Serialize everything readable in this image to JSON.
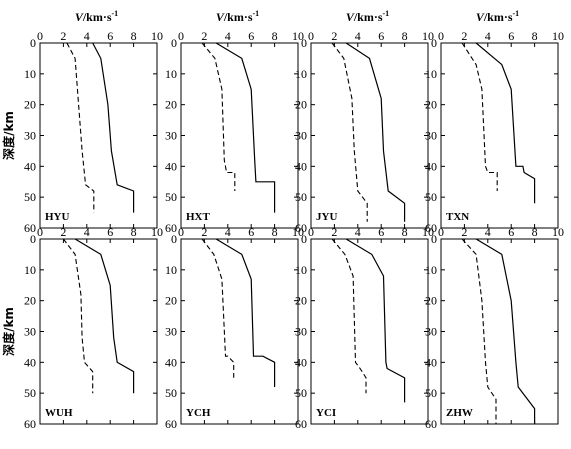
{
  "chart_data": {
    "type": "line",
    "x_axis": {
      "label": "V/km·s⁻¹",
      "label_parts": [
        "V",
        "/km·s",
        "-1"
      ],
      "range": [
        0,
        10
      ],
      "ticks": [
        "0",
        "2",
        "4",
        "6",
        "8",
        "10"
      ],
      "position": "top"
    },
    "y_axis": {
      "label": "深度/km",
      "range": [
        0,
        60
      ],
      "ticks": [
        "0",
        "10",
        "20",
        "30",
        "40",
        "50",
        "60"
      ],
      "inverted": true
    },
    "series_styles": {
      "vp": "solid",
      "vs": "dashed"
    },
    "panels": [
      {
        "station": "HYU",
        "vp": [
          [
            4.5,
            0
          ],
          [
            5.2,
            5
          ],
          [
            5.8,
            20
          ],
          [
            6.1,
            35
          ],
          [
            6.6,
            46
          ],
          [
            8.0,
            48
          ],
          [
            8.0,
            55
          ]
        ],
        "vs": [
          [
            2.3,
            0
          ],
          [
            3.0,
            5
          ],
          [
            3.3,
            20
          ],
          [
            3.6,
            35
          ],
          [
            3.9,
            46
          ],
          [
            4.6,
            48
          ],
          [
            4.6,
            55
          ]
        ]
      },
      {
        "station": "HXT",
        "vp": [
          [
            3.0,
            0
          ],
          [
            5.2,
            5
          ],
          [
            6.0,
            15
          ],
          [
            6.3,
            38
          ],
          [
            6.4,
            45
          ],
          [
            8.0,
            45
          ],
          [
            8.0,
            55
          ]
        ],
        "vs": [
          [
            1.8,
            0
          ],
          [
            2.9,
            5
          ],
          [
            3.5,
            15
          ],
          [
            3.7,
            38
          ],
          [
            3.9,
            42
          ],
          [
            4.6,
            42
          ],
          [
            4.6,
            48
          ]
        ]
      },
      {
        "station": "JYU",
        "vp": [
          [
            3.0,
            0
          ],
          [
            5.0,
            5
          ],
          [
            6.0,
            18
          ],
          [
            6.2,
            35
          ],
          [
            6.6,
            48
          ],
          [
            8.0,
            52
          ],
          [
            8.0,
            58
          ]
        ],
        "vs": [
          [
            1.8,
            0
          ],
          [
            2.8,
            5
          ],
          [
            3.5,
            18
          ],
          [
            3.7,
            35
          ],
          [
            4.0,
            48
          ],
          [
            4.8,
            52
          ],
          [
            4.8,
            58
          ]
        ]
      },
      {
        "station": "TXN",
        "vp": [
          [
            3.0,
            0
          ],
          [
            5.2,
            7
          ],
          [
            6.0,
            15
          ],
          [
            6.4,
            40
          ],
          [
            7.0,
            40
          ],
          [
            7.1,
            42
          ],
          [
            8.0,
            44
          ],
          [
            8.0,
            52
          ]
        ],
        "vs": [
          [
            1.8,
            0
          ],
          [
            3.0,
            7
          ],
          [
            3.5,
            15
          ],
          [
            3.8,
            40
          ],
          [
            4.0,
            42
          ],
          [
            4.8,
            42
          ],
          [
            4.8,
            48
          ]
        ]
      },
      {
        "station": "WUH",
        "vp": [
          [
            3.0,
            0
          ],
          [
            5.2,
            5
          ],
          [
            6.0,
            15
          ],
          [
            6.3,
            32
          ],
          [
            6.6,
            40
          ],
          [
            8.0,
            43
          ],
          [
            8.0,
            50
          ]
        ],
        "vs": [
          [
            2.0,
            0
          ],
          [
            3.0,
            5
          ],
          [
            3.5,
            18
          ],
          [
            3.6,
            32
          ],
          [
            3.8,
            40
          ],
          [
            4.5,
            43
          ],
          [
            4.5,
            50
          ]
        ]
      },
      {
        "station": "YCH",
        "vp": [
          [
            3.0,
            0
          ],
          [
            5.2,
            5
          ],
          [
            6.0,
            13
          ],
          [
            6.2,
            38
          ],
          [
            7.0,
            38
          ],
          [
            8.0,
            40
          ],
          [
            8.0,
            48
          ]
        ],
        "vs": [
          [
            1.8,
            0
          ],
          [
            2.8,
            5
          ],
          [
            3.5,
            13
          ],
          [
            3.8,
            38
          ],
          [
            4.0,
            38
          ],
          [
            4.5,
            40
          ],
          [
            4.5,
            45
          ]
        ]
      },
      {
        "station": "YCI",
        "vp": [
          [
            3.0,
            0
          ],
          [
            5.2,
            5
          ],
          [
            6.2,
            12
          ],
          [
            6.4,
            40
          ],
          [
            6.5,
            42
          ],
          [
            8.0,
            45
          ],
          [
            8.0,
            53
          ]
        ],
        "vs": [
          [
            1.8,
            0
          ],
          [
            2.9,
            5
          ],
          [
            3.6,
            12
          ],
          [
            3.8,
            40
          ],
          [
            4.2,
            42
          ],
          [
            4.7,
            45
          ],
          [
            4.7,
            50
          ]
        ]
      },
      {
        "station": "ZHW",
        "vp": [
          [
            3.0,
            0
          ],
          [
            5.2,
            5
          ],
          [
            6.0,
            20
          ],
          [
            6.4,
            40
          ],
          [
            6.6,
            48
          ],
          [
            8.0,
            55
          ],
          [
            8.0,
            62
          ]
        ],
        "vs": [
          [
            1.8,
            0
          ],
          [
            3.0,
            5
          ],
          [
            3.5,
            20
          ],
          [
            3.8,
            40
          ],
          [
            4.0,
            48
          ],
          [
            4.7,
            52
          ],
          [
            4.7,
            60
          ]
        ]
      }
    ]
  }
}
